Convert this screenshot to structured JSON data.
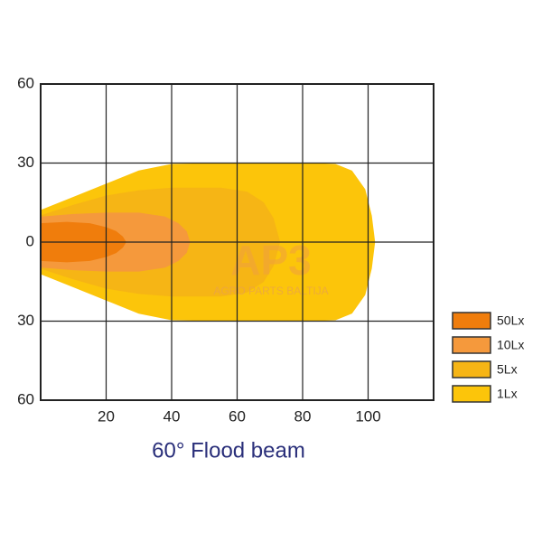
{
  "chart_data": {
    "type": "area",
    "title": "60° Flood beam",
    "watermark": [
      "AP3",
      "AGRO PARTS BALTIJA"
    ],
    "xlim": [
      0,
      120
    ],
    "xticks": [
      20,
      40,
      60,
      80,
      100
    ],
    "ylim": [
      -60,
      60
    ],
    "yticks": [
      60,
      30,
      0,
      {
        "value": -30,
        "label": "30"
      },
      {
        "value": -60,
        "label": "60"
      }
    ],
    "grid": true,
    "mirrored": true,
    "legend": "right",
    "series": [
      {
        "name": "50Lx",
        "color": "#f07d0c",
        "x": [
          0,
          8,
          15,
          20,
          23,
          25,
          26
        ],
        "values": [
          7,
          7.5,
          7,
          5.5,
          4,
          2,
          0
        ]
      },
      {
        "name": "10Lx",
        "color": "#f5993c",
        "x": [
          0,
          10,
          20,
          30,
          38,
          42,
          44.5,
          45.5
        ],
        "values": [
          9.5,
          10.5,
          11,
          11,
          9.5,
          7,
          4,
          0
        ]
      },
      {
        "name": "5Lx",
        "color": "#f6b515",
        "x": [
          0,
          10,
          20,
          30,
          40,
          55,
          63,
          68,
          71,
          73
        ],
        "values": [
          10,
          14,
          17.5,
          19.5,
          20.5,
          20.5,
          19,
          15,
          9,
          0
        ]
      },
      {
        "name": "1Lx",
        "color": "#fcc50a",
        "x": [
          0,
          10,
          20,
          30,
          40,
          60,
          80,
          90,
          95,
          99,
          101,
          102
        ],
        "values": [
          12,
          17,
          22,
          27,
          29.5,
          30,
          30,
          29.5,
          27,
          20,
          10,
          0
        ]
      }
    ]
  }
}
